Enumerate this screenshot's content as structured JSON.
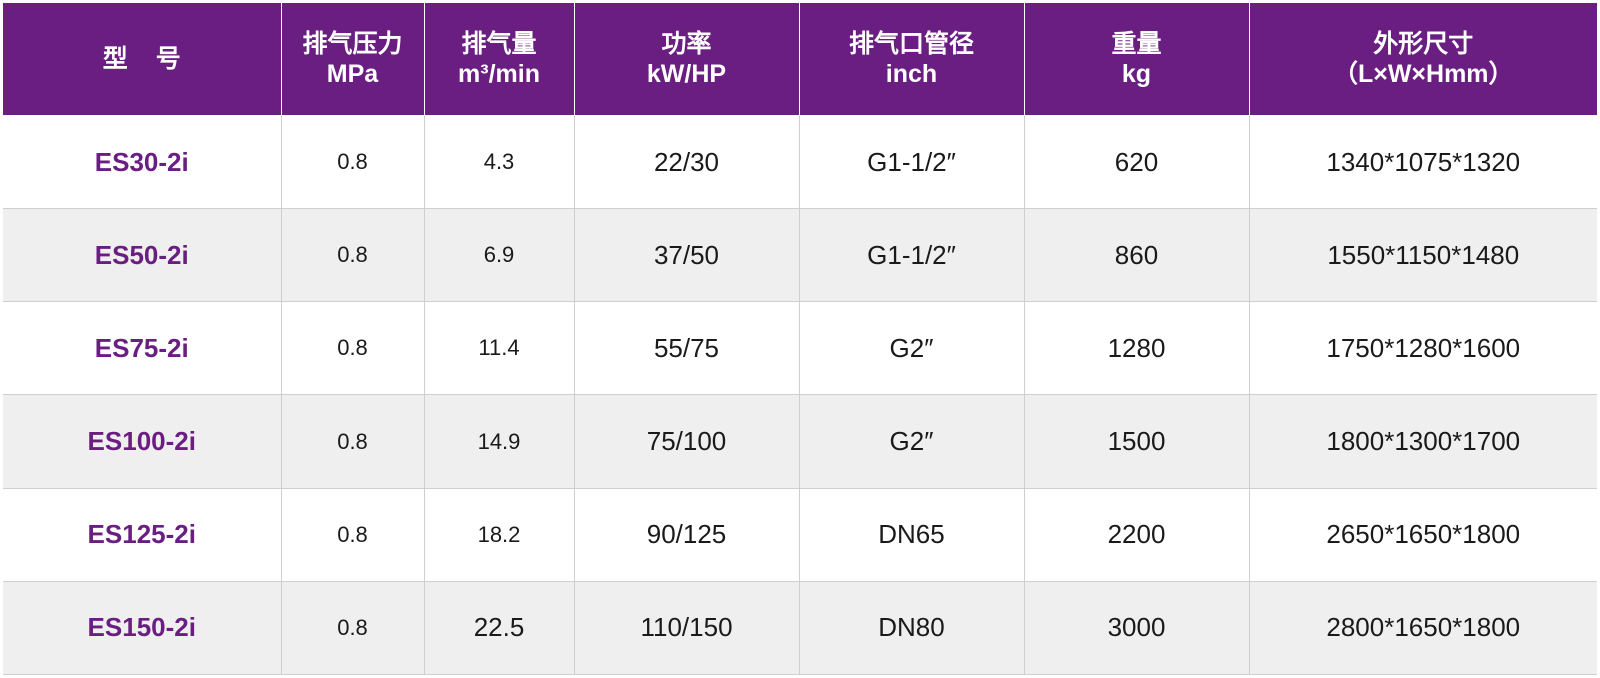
{
  "table": {
    "headers": [
      {
        "line1": "型号",
        "line2": ""
      },
      {
        "line1": "排气压力",
        "line2": "MPa"
      },
      {
        "line1": "排气量",
        "line2": "m³/min"
      },
      {
        "line1": "功率",
        "line2": "kW/HP"
      },
      {
        "line1": "排气口管径",
        "line2": "inch"
      },
      {
        "line1": "重量",
        "line2": "kg"
      },
      {
        "line1": "外形尺寸",
        "line2": "（L×W×Hmm）"
      }
    ],
    "rows": [
      [
        "ES30-2i",
        "0.8",
        "4.3",
        "22/30",
        "G1-1/2″",
        "620",
        "1340*1075*1320"
      ],
      [
        "ES50-2i",
        "0.8",
        "6.9",
        "37/50",
        "G1-1/2″",
        "860",
        "1550*1150*1480"
      ],
      [
        "ES75-2i",
        "0.8",
        "11.4",
        "55/75",
        "G2″",
        "1280",
        "1750*1280*1600"
      ],
      [
        "ES100-2i",
        "0.8",
        "14.9",
        "75/100",
        "G2″",
        "1500",
        "1800*1300*1700"
      ],
      [
        "ES125-2i",
        "0.8",
        "18.2",
        "90/125",
        "DN65",
        "2200",
        "2650*1650*1800"
      ],
      [
        "ES150-2i",
        "0.8",
        "22.5",
        "110/150",
        "DN80",
        "3000",
        "2800*1650*1800"
      ]
    ]
  },
  "colors": {
    "header_bg": "#6b1e82",
    "model_text": "#6b1e82",
    "row_alt_bg": "#efefef"
  }
}
